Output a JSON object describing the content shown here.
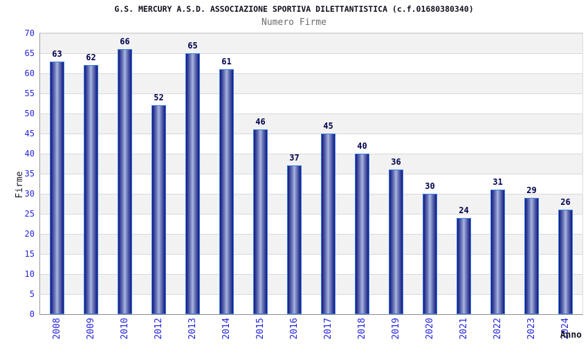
{
  "chart": {
    "title": "G.S. MERCURY A.S.D. ASSOCIAZIONE SPORTIVA DILETTANTISTICA (c.f.01680380340)",
    "subtitle": "Numero Firme",
    "ylabel": "Firme",
    "xlabel": "Anno"
  },
  "chart_data": {
    "type": "bar",
    "title": "G.S. MERCURY A.S.D. ASSOCIAZIONE SPORTIVA DILETTANTISTICA (c.f.01680380340)",
    "subtitle": "Numero Firme",
    "xlabel": "Anno",
    "ylabel": "Firme",
    "categories": [
      "2008",
      "2009",
      "2010",
      "2012",
      "2013",
      "2014",
      "2015",
      "2016",
      "2017",
      "2018",
      "2019",
      "2020",
      "2021",
      "2022",
      "2023",
      "2024"
    ],
    "values": [
      63,
      62,
      66,
      52,
      65,
      61,
      46,
      37,
      45,
      40,
      36,
      30,
      24,
      31,
      29,
      26
    ],
    "ylim": [
      0,
      70
    ],
    "ytick_step": 5,
    "grid": true,
    "grid_style": "alternating-gray-white-bands",
    "legend": false,
    "colors": {
      "bar_dark": "#141483",
      "bar_light": "#aab6e0",
      "bar_border": "#3b7fe0",
      "tick_label": "#2323dd",
      "value_label": "#00004d",
      "title": "#10101e",
      "subtitle": "#6b6b6b",
      "band_gray": "#f2f2f2",
      "gridline": "#d9d9d9",
      "axis_line": "#8a8a8a"
    }
  }
}
